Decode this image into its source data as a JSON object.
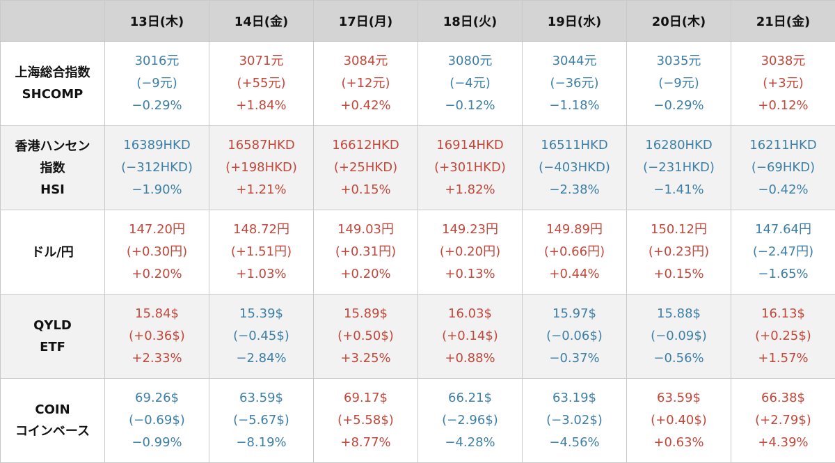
{
  "colors": {
    "up": "#c2483b",
    "down": "#3d7fa6",
    "header_bg": "#d4d4d4"
  },
  "table": {
    "corner": "",
    "headers": [
      "13日(木)",
      "14日(金)",
      "17日(月)",
      "18日(火)",
      "19日(水)",
      "20日(木)",
      "21日(金)"
    ],
    "rows": [
      {
        "label": [
          "上海総合指数",
          "SHCOMP"
        ],
        "cells": [
          {
            "dir": "down",
            "lines": [
              "3016元",
              "(−9元)",
              "−0.29%"
            ]
          },
          {
            "dir": "up",
            "lines": [
              "3071元",
              "(+55元)",
              "+1.84%"
            ]
          },
          {
            "dir": "up",
            "lines": [
              "3084元",
              "(+12元)",
              "+0.42%"
            ]
          },
          {
            "dir": "down",
            "lines": [
              "3080元",
              "(−4元)",
              "−0.12%"
            ]
          },
          {
            "dir": "down",
            "lines": [
              "3044元",
              "(−36元)",
              "−1.18%"
            ]
          },
          {
            "dir": "down",
            "lines": [
              "3035元",
              "(−9元)",
              "−0.29%"
            ]
          },
          {
            "dir": "up",
            "lines": [
              "3038元",
              "(+3元)",
              "+0.12%"
            ]
          }
        ]
      },
      {
        "label": [
          "香港ハンセン",
          "指数",
          "HSI"
        ],
        "cells": [
          {
            "dir": "down",
            "lines": [
              "16389HKD",
              "(−312HKD)",
              "−1.90%"
            ]
          },
          {
            "dir": "up",
            "lines": [
              "16587HKD",
              "(+198HKD)",
              "+1.21%"
            ]
          },
          {
            "dir": "up",
            "lines": [
              "16612HKD",
              "(+25HKD)",
              "+0.15%"
            ]
          },
          {
            "dir": "up",
            "lines": [
              "16914HKD",
              "(+301HKD)",
              "+1.82%"
            ]
          },
          {
            "dir": "down",
            "lines": [
              "16511HKD",
              "(−403HKD)",
              "−2.38%"
            ]
          },
          {
            "dir": "down",
            "lines": [
              "16280HKD",
              "(−231HKD)",
              "−1.41%"
            ]
          },
          {
            "dir": "down",
            "lines": [
              "16211HKD",
              "(−69HKD)",
              "−0.42%"
            ]
          }
        ]
      },
      {
        "label": [
          "ドル/円"
        ],
        "cells": [
          {
            "dir": "up",
            "lines": [
              "147.20円",
              "(+0.30円)",
              "+0.20%"
            ]
          },
          {
            "dir": "up",
            "lines": [
              "148.72円",
              "(+1.51円)",
              "+1.03%"
            ]
          },
          {
            "dir": "up",
            "lines": [
              "149.03円",
              "(+0.31円)",
              "+0.20%"
            ]
          },
          {
            "dir": "up",
            "lines": [
              "149.23円",
              "(+0.20円)",
              "+0.13%"
            ]
          },
          {
            "dir": "up",
            "lines": [
              "149.89円",
              "(+0.66円)",
              "+0.44%"
            ]
          },
          {
            "dir": "up",
            "lines": [
              "150.12円",
              "(+0.23円)",
              "+0.15%"
            ]
          },
          {
            "dir": "down",
            "lines": [
              "147.64円",
              "(−2.47円)",
              "−1.65%"
            ]
          }
        ]
      },
      {
        "label": [
          "QYLD",
          "ETF"
        ],
        "cells": [
          {
            "dir": "up",
            "lines": [
              "15.84$",
              "(+0.36$)",
              "+2.33%"
            ]
          },
          {
            "dir": "down",
            "lines": [
              "15.39$",
              "(−0.45$)",
              "−2.84%"
            ]
          },
          {
            "dir": "up",
            "lines": [
              "15.89$",
              "(+0.50$)",
              "+3.25%"
            ]
          },
          {
            "dir": "up",
            "lines": [
              "16.03$",
              "(+0.14$)",
              "+0.88%"
            ]
          },
          {
            "dir": "down",
            "lines": [
              "15.97$",
              "(−0.06$)",
              "−0.37%"
            ]
          },
          {
            "dir": "down",
            "lines": [
              "15.88$",
              "(−0.09$)",
              "−0.56%"
            ]
          },
          {
            "dir": "up",
            "lines": [
              "16.13$",
              "(+0.25$)",
              "+1.57%"
            ]
          }
        ]
      },
      {
        "label": [
          "COIN",
          "コインベース"
        ],
        "cells": [
          {
            "dir": "down",
            "lines": [
              "69.26$",
              "(−0.69$)",
              "−0.99%"
            ]
          },
          {
            "dir": "down",
            "lines": [
              "63.59$",
              "(−5.67$)",
              "−8.19%"
            ]
          },
          {
            "dir": "up",
            "lines": [
              "69.17$",
              "(+5.58$)",
              "+8.77%"
            ]
          },
          {
            "dir": "down",
            "lines": [
              "66.21$",
              "(−2.96$)",
              "−4.28%"
            ]
          },
          {
            "dir": "down",
            "lines": [
              "63.19$",
              "(−3.02$)",
              "−4.56%"
            ]
          },
          {
            "dir": "up",
            "lines": [
              "63.59$",
              "(+0.40$)",
              "+0.63%"
            ]
          },
          {
            "dir": "up",
            "lines": [
              "66.38$",
              "(+2.79$)",
              "+4.39%"
            ]
          }
        ]
      }
    ]
  }
}
